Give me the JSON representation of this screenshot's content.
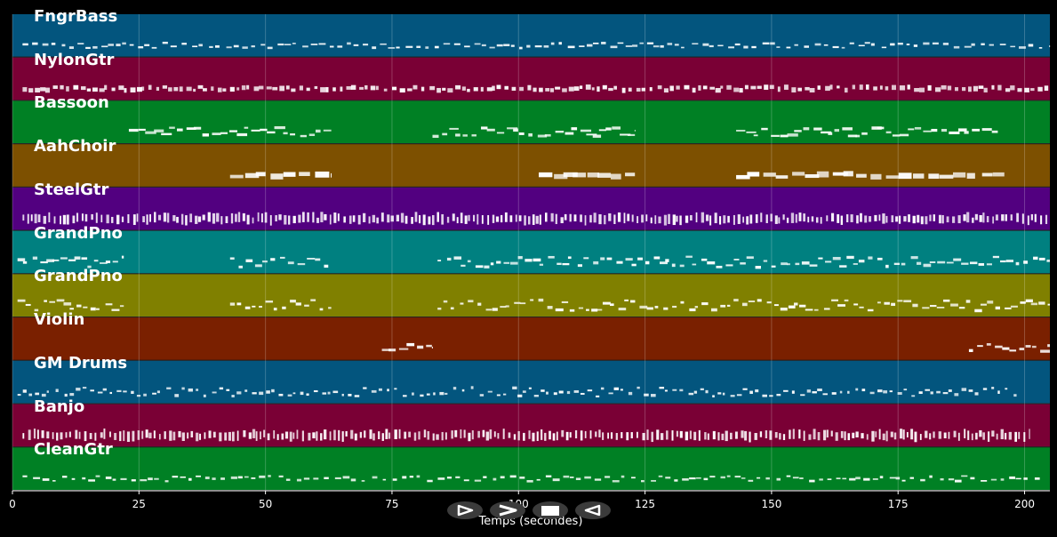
{
  "chart_data": {
    "type": "piano-roll",
    "xlabel": "Temps (secondes)",
    "xlim": [
      0,
      205
    ],
    "xticks": [
      0,
      25,
      50,
      75,
      100,
      125,
      150,
      175,
      200
    ],
    "tracks": [
      {
        "name": "FngrBass",
        "color": "#03557e",
        "segments": [
          [
            2,
            205
          ]
        ],
        "style": "bass"
      },
      {
        "name": "NylonGtr",
        "color": "#7a0035",
        "segments": [
          [
            2,
            205
          ]
        ],
        "style": "guitar"
      },
      {
        "name": "Bassoon",
        "color": "#008024",
        "segments": [
          [
            23,
            63
          ],
          [
            83,
            123
          ],
          [
            143,
            195
          ]
        ],
        "style": "melody"
      },
      {
        "name": "AahChoir",
        "color": "#7d5000",
        "segments": [
          [
            43,
            63
          ],
          [
            104,
            123
          ],
          [
            143,
            196
          ]
        ],
        "style": "pad"
      },
      {
        "name": "SteelGtr",
        "color": "#520080",
        "segments": [
          [
            2,
            205
          ]
        ],
        "style": "strum"
      },
      {
        "name": "GrandPno",
        "color": "#008080",
        "segments": [
          [
            1,
            22
          ],
          [
            43,
            63
          ],
          [
            84,
            205
          ]
        ],
        "style": "piano"
      },
      {
        "name": "GrandPno",
        "color": "#808000",
        "segments": [
          [
            1,
            22
          ],
          [
            43,
            63
          ],
          [
            84,
            205
          ]
        ],
        "style": "piano"
      },
      {
        "name": "Violin",
        "color": "#7a2000",
        "segments": [
          [
            73,
            83
          ],
          [
            189,
            205
          ]
        ],
        "style": "melody"
      },
      {
        "name": "GM Drums",
        "color": "#03557e",
        "segments": [
          [
            1,
            199
          ]
        ],
        "style": "drums"
      },
      {
        "name": "Banjo",
        "color": "#7a0035",
        "segments": [
          [
            2,
            201
          ]
        ],
        "style": "strum"
      },
      {
        "name": "CleanGtr",
        "color": "#008024",
        "segments": [
          [
            2,
            203
          ]
        ],
        "style": "bass"
      }
    ]
  },
  "controls": {
    "play_icon": "play-outline-icon",
    "forward_icon": "forward-icon",
    "stop_icon": "stop-icon",
    "rewind_icon": "rewind-icon"
  }
}
